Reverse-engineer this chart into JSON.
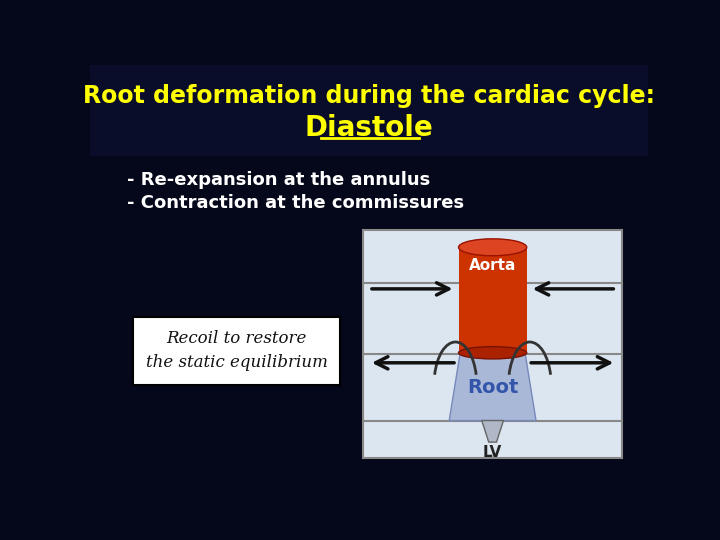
{
  "bg_color": "#05071a",
  "title_line1": "Root deformation during the cardiac cycle:",
  "title_line2": "Diastole",
  "title_color": "#ffff00",
  "bullet1": "- Re-expansion at the annulus",
  "bullet2": "- Contraction at the commissures",
  "bullet_color": "#ffffff",
  "recoil_text_line1": "Recoil to restore",
  "recoil_text_line2": "the static equilibrium",
  "recoil_box_facecolor": "#ffffff",
  "recoil_box_edgecolor": "#000000",
  "diagram_box_facecolor": "#dce6f0",
  "diagram_box_edgecolor": "#888888",
  "aorta_color": "#cc3300",
  "aorta_top_color": "#dd4422",
  "aorta_bot_color": "#aa2200",
  "root_color": "#aab8d8",
  "root_label_color": "#3355aa",
  "aorta_label": "Aorta",
  "root_label": "Root",
  "lv_label": "LV",
  "arrow_color": "#111111",
  "line_color": "#888888",
  "title_bg_color": "#0a0d2a"
}
